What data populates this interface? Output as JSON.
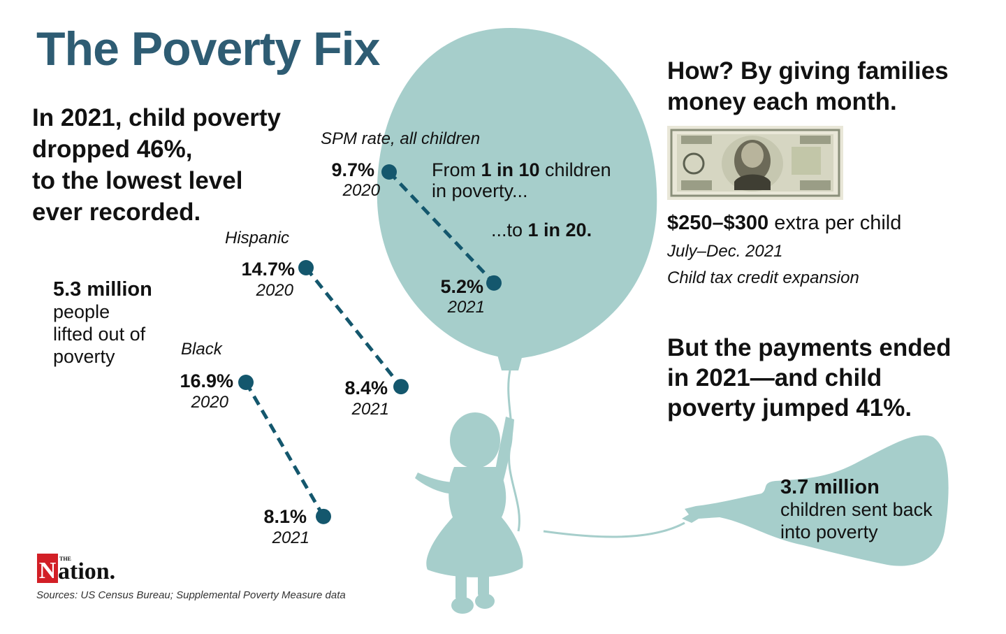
{
  "title": "The Poverty Fix",
  "lede": [
    "In 2021, child poverty",
    "dropped 46%,",
    "to the lowest level",
    "ever recorded."
  ],
  "lifted": {
    "figure": "5.3 million",
    "lines": [
      "people",
      "lifted out of",
      "poverty"
    ]
  },
  "how": [
    "How? By giving families",
    "money each month."
  ],
  "amount": {
    "bold": "$250–$300",
    "rest": " extra per child"
  },
  "period": "July–Dec. 2021",
  "program": "Child tax credit expansion",
  "ended": [
    "But the payments ended",
    "in 2021—and child",
    "poverty jumped 41%."
  ],
  "sent_back": {
    "figure": "3.7 million",
    "lines": [
      "children sent back",
      "into poverty"
    ]
  },
  "ratio_note": {
    "from_pre": "From ",
    "from_bold": "1 in 10",
    "from_post": " children",
    "from_line2": "in poverty...",
    "to_pre": "...to ",
    "to_bold": "1 in 20."
  },
  "sources": "Sources: US Census Bureau; Supplemental Poverty Measure data",
  "logo": {
    "wordmark": "ation.",
    "letter": "N",
    "small": "THE"
  },
  "colors": {
    "title": "#2e5c73",
    "balloon": "#a6cecb",
    "dots": "#14576d"
  },
  "chart_data": {
    "type": "line",
    "x": [
      "2020",
      "2021"
    ],
    "series": [
      {
        "name": "SPM rate, all children",
        "values": [
          9.7,
          5.2
        ],
        "labels": [
          "9.7%",
          "5.2%"
        ]
      },
      {
        "name": "Hispanic",
        "values": [
          14.7,
          8.4
        ],
        "labels": [
          "14.7%",
          "8.4%"
        ]
      },
      {
        "name": "Black",
        "values": [
          16.9,
          8.1
        ],
        "labels": [
          "16.9%",
          "8.1%"
        ]
      }
    ]
  }
}
